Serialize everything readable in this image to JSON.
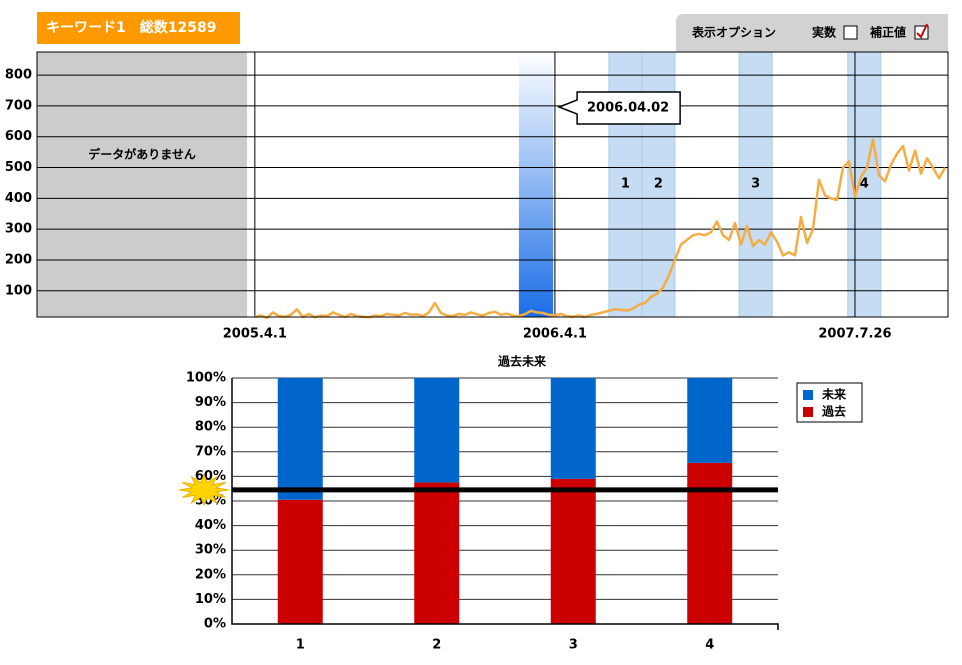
{
  "header": {
    "title": "キーワード1　総数12589"
  },
  "options": {
    "label": "表示オプション",
    "items": [
      {
        "label": "実数",
        "checked": false
      },
      {
        "label": "補正値",
        "checked": true
      }
    ]
  },
  "chart_data": [
    {
      "type": "line",
      "color": "#f4ad45",
      "xlim": [
        -36.3,
        115.5
      ],
      "ylim": [
        15,
        875
      ],
      "yticks": [
        100,
        200,
        300,
        400,
        500,
        600,
        700,
        800
      ],
      "xticks": [
        {
          "value": 0,
          "label": "2005.4.1"
        },
        {
          "value": 50,
          "label": "2006.4.1"
        },
        {
          "value": 100,
          "label": "2007.7.26"
        }
      ],
      "no_data": {
        "label": "データがありません",
        "x_range": [
          -36.3,
          -1.3
        ]
      },
      "highlight": {
        "label": "2006.04.02",
        "range": [
          44,
          49.7
        ]
      },
      "bands": [
        {
          "label": "1",
          "range": [
            59,
            64.5
          ]
        },
        {
          "label": "2",
          "range": [
            64.5,
            70
          ]
        },
        {
          "label": "3",
          "range": [
            80.7,
            86.2
          ]
        },
        {
          "label": "4",
          "range": [
            98.8,
            104.3
          ]
        }
      ],
      "x": [
        0,
        1,
        2,
        3,
        4,
        5,
        6,
        7,
        8,
        9,
        10,
        11,
        12,
        13,
        14,
        15,
        16,
        17,
        18,
        19,
        20,
        21,
        22,
        23,
        24,
        25,
        26,
        27,
        28,
        29,
        30,
        31,
        32,
        33,
        34,
        35,
        36,
        37,
        38,
        39,
        40,
        41,
        42,
        43,
        44,
        45,
        46,
        47,
        48,
        49,
        50,
        51,
        52,
        53,
        54,
        55,
        56,
        57,
        58,
        59,
        60,
        61,
        62,
        63,
        64,
        65,
        66,
        67,
        68,
        69,
        70,
        71,
        72,
        73,
        74,
        75,
        76,
        77,
        78,
        79,
        80,
        81,
        82,
        83,
        84,
        85,
        86,
        87,
        88,
        89,
        90,
        91,
        92,
        93,
        94,
        95,
        96,
        97,
        98,
        99,
        100,
        101,
        102,
        103,
        104,
        105,
        106,
        107,
        108,
        109,
        110,
        111,
        112,
        113,
        114,
        115
      ],
      "values": [
        15,
        20,
        12,
        30,
        18,
        16,
        22,
        40,
        15,
        25,
        14,
        20,
        18,
        30,
        22,
        15,
        25,
        18,
        16,
        14,
        20,
        18,
        25,
        22,
        20,
        28,
        22,
        24,
        18,
        30,
        60,
        28,
        20,
        18,
        25,
        22,
        30,
        24,
        20,
        28,
        32,
        22,
        26,
        20,
        18,
        24,
        35,
        30,
        28,
        22,
        20,
        25,
        18,
        16,
        20,
        15,
        22,
        25,
        30,
        35,
        40,
        38,
        36,
        42,
        55,
        60,
        80,
        90,
        110,
        150,
        200,
        250,
        265,
        280,
        285,
        280,
        290,
        325,
        280,
        265,
        320,
        250,
        310,
        245,
        265,
        250,
        290,
        260,
        215,
        225,
        215,
        340,
        255,
        300,
        460,
        410,
        400,
        395,
        500,
        520,
        405,
        470,
        500,
        590,
        475,
        455,
        510,
        545,
        570,
        490,
        555,
        480,
        530,
        500,
        465,
        500
      ]
    },
    {
      "type": "stacked_bar",
      "title": "過去未来",
      "categories": [
        "1",
        "2",
        "3",
        "4"
      ],
      "series": [
        {
          "name": "未来",
          "color": "#0066cc",
          "values": [
            49.5,
            42.5,
            41,
            34.5
          ]
        },
        {
          "name": "過去",
          "color": "#cc0000",
          "values": [
            50.5,
            57.5,
            59,
            65.5
          ]
        }
      ],
      "ylim": [
        0,
        100
      ],
      "yticks": [
        {
          "value": 0,
          "label": "0%"
        },
        {
          "value": 10,
          "label": "10%"
        },
        {
          "value": 20,
          "label": "20%"
        },
        {
          "value": 30,
          "label": "30%"
        },
        {
          "value": 40,
          "label": "40%"
        },
        {
          "value": 50,
          "label": "50%"
        },
        {
          "value": 60,
          "label": "60%"
        },
        {
          "value": 70,
          "label": "70%"
        },
        {
          "value": 80,
          "label": "80%"
        },
        {
          "value": 90,
          "label": "90%"
        },
        {
          "value": 100,
          "label": "100%"
        }
      ],
      "threshold": 54.5,
      "grid": true,
      "legend": "right"
    }
  ]
}
